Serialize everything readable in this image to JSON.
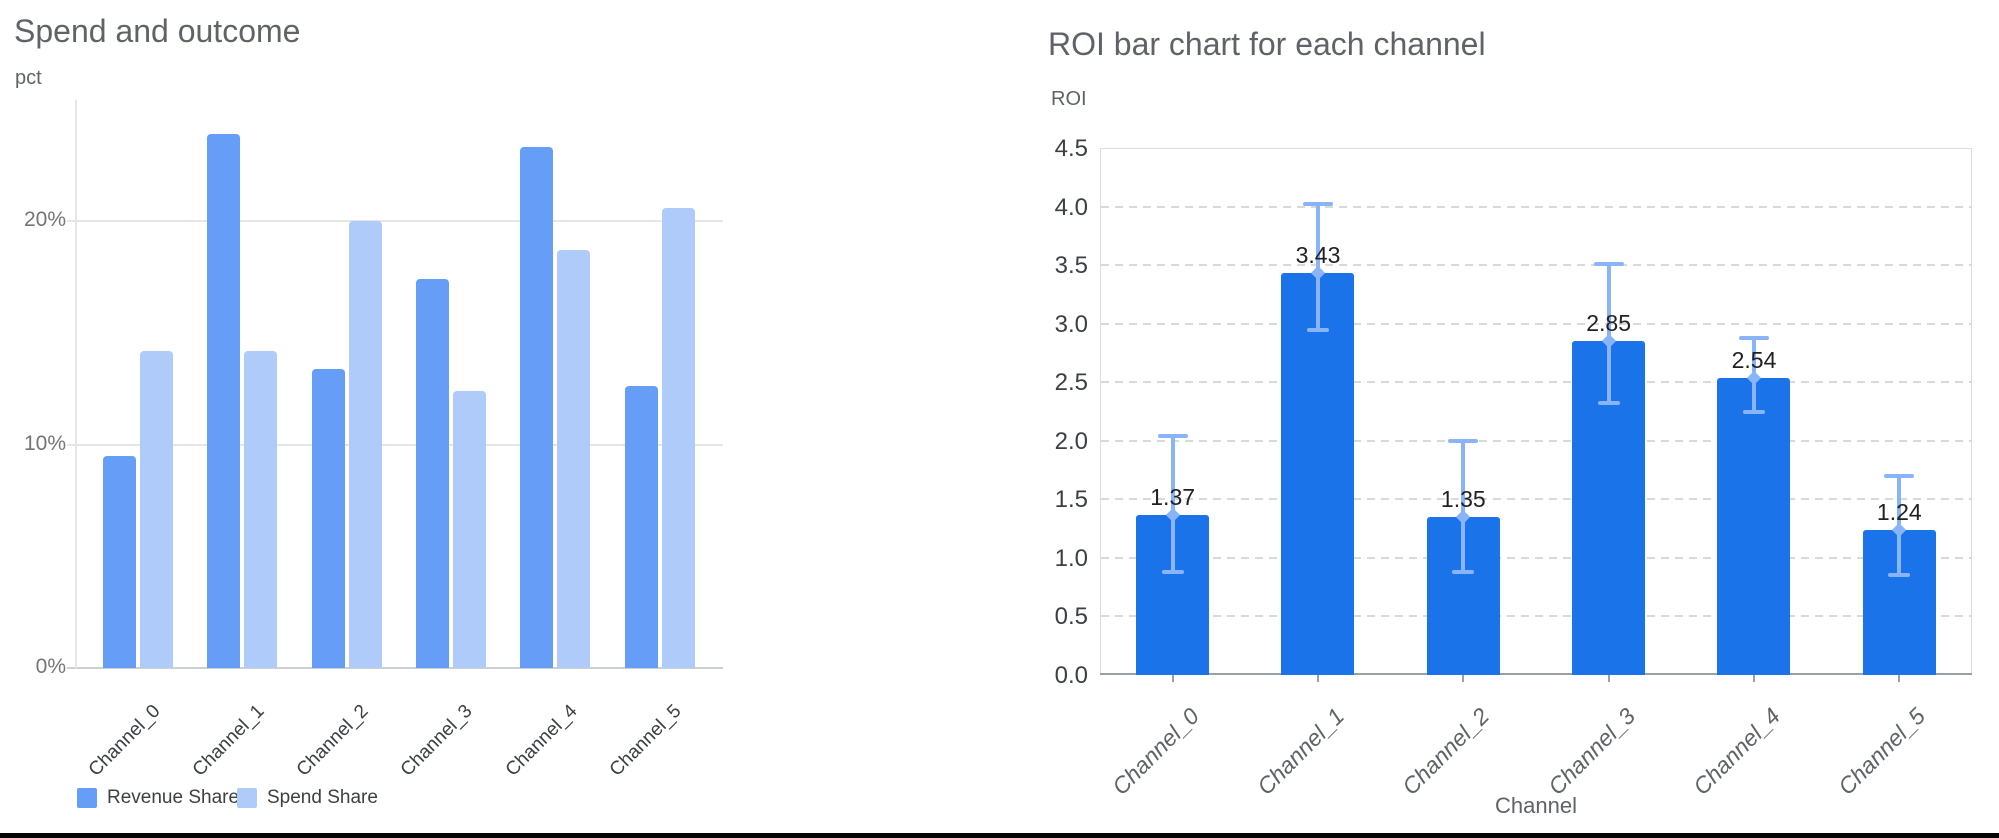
{
  "colors": {
    "revenue": "#669df6",
    "spend": "#aecbfa",
    "roi_bar": "#1a73e8",
    "error_bar": "#8ab4f8",
    "grid_solid": "#e6e6e6",
    "grid_dashed": "#d9d9d9",
    "baseline_left": "#cdd0d3",
    "axis_right": "#9aa0a6",
    "plot_border": "#dadce0",
    "title_text": "#5f6368",
    "bottom_line": "#060606"
  },
  "chart_data": [
    {
      "type": "bar",
      "title": "Spend and outcome",
      "ylabel": "pct",
      "xlabel": "",
      "categories": [
        "Channel_0",
        "Channel_1",
        "Channel_2",
        "Channel_3",
        "Channel_4",
        "Channel_5"
      ],
      "series": [
        {
          "name": "Revenue Share",
          "color": "#669df6",
          "values": [
            9.5,
            23.9,
            13.4,
            17.4,
            23.3,
            12.6
          ]
        },
        {
          "name": "Spend Share",
          "color": "#aecbfa",
          "values": [
            14.2,
            14.2,
            20.0,
            12.4,
            18.7,
            20.6
          ]
        }
      ],
      "y_ticks": [
        {
          "label": "0%",
          "value": 0
        },
        {
          "label": "10%",
          "value": 10
        },
        {
          "label": "20%",
          "value": 20
        }
      ],
      "ylim": [
        0,
        25.4
      ],
      "grid": "solid",
      "legend_position": "bottom",
      "value_unit": "percent"
    },
    {
      "type": "bar",
      "title": "ROI bar chart for each channel",
      "ylabel": "ROI",
      "xlabel": "Channel",
      "categories": [
        "Channel_0",
        "Channel_1",
        "Channel_2",
        "Channel_3",
        "Channel_4",
        "Channel_5"
      ],
      "series": [
        {
          "name": "ROI",
          "color": "#1a73e8",
          "values": [
            1.37,
            3.43,
            1.35,
            2.85,
            2.54,
            1.24
          ]
        }
      ],
      "data_labels": [
        "1.37",
        "3.43",
        "1.35",
        "2.85",
        "2.54",
        "1.24"
      ],
      "error_bars": {
        "color": "#8ab4f8",
        "low": [
          0.88,
          2.95,
          0.88,
          2.32,
          2.25,
          0.85
        ],
        "high": [
          2.04,
          4.02,
          2.0,
          3.51,
          2.88,
          1.7
        ]
      },
      "y_ticks": [
        {
          "label": "0.0",
          "value": 0.0
        },
        {
          "label": "0.5",
          "value": 0.5
        },
        {
          "label": "1.0",
          "value": 1.0
        },
        {
          "label": "1.5",
          "value": 1.5
        },
        {
          "label": "2.0",
          "value": 2.0
        },
        {
          "label": "2.5",
          "value": 2.5
        },
        {
          "label": "3.0",
          "value": 3.0
        },
        {
          "label": "3.5",
          "value": 3.5
        },
        {
          "label": "4.0",
          "value": 4.0
        },
        {
          "label": "4.5",
          "value": 4.5
        }
      ],
      "ylim": [
        0,
        4.5
      ],
      "grid": "dashed",
      "legend_position": "none"
    }
  ]
}
